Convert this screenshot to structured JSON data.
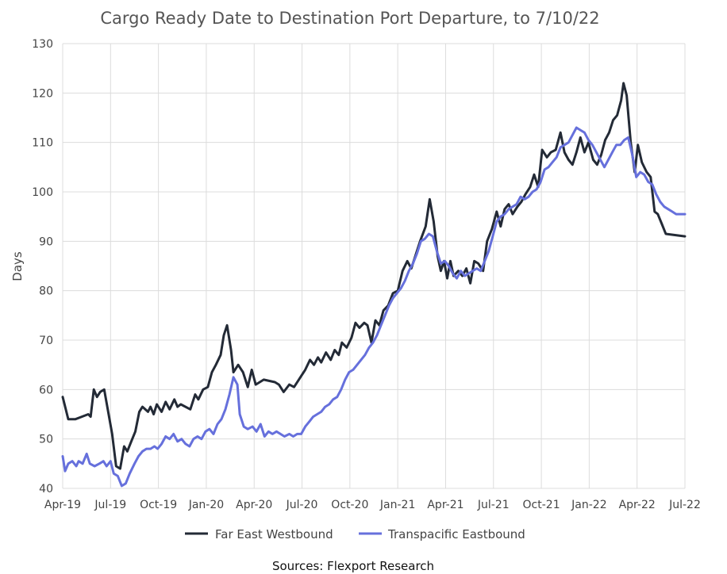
{
  "chart_data": {
    "type": "line",
    "title": "Cargo Ready Date to Destination Port Departure, to 7/10/22",
    "ylabel": "Days",
    "xlabel": "",
    "source": "Sources: Flexport Research",
    "ylim": [
      40,
      130
    ],
    "yticks": [
      40,
      50,
      60,
      70,
      80,
      90,
      100,
      110,
      120,
      130
    ],
    "xlim": [
      0,
      39
    ],
    "xticks": [
      {
        "pos": 0,
        "label": "Apr-19"
      },
      {
        "pos": 3,
        "label": "Jul-19"
      },
      {
        "pos": 6,
        "label": "Oct-19"
      },
      {
        "pos": 9,
        "label": "Jan-20"
      },
      {
        "pos": 12,
        "label": "Apr-20"
      },
      {
        "pos": 15,
        "label": "Jul-20"
      },
      {
        "pos": 18,
        "label": "Oct-20"
      },
      {
        "pos": 21,
        "label": "Jan-21"
      },
      {
        "pos": 24,
        "label": "Apr-21"
      },
      {
        "pos": 27,
        "label": "Jul-21"
      },
      {
        "pos": 30,
        "label": "Oct-21"
      },
      {
        "pos": 33,
        "label": "Jan-22"
      },
      {
        "pos": 36,
        "label": "Apr-22"
      },
      {
        "pos": 39,
        "label": "Jul-22"
      }
    ],
    "grid": true,
    "legend_position": "bottom",
    "series": [
      {
        "name": "Far East Westbound",
        "color": "#232a36",
        "points": [
          [
            0,
            58.5
          ],
          [
            0.35,
            54
          ],
          [
            0.8,
            54
          ],
          [
            1.2,
            54.5
          ],
          [
            1.6,
            55
          ],
          [
            1.75,
            54.5
          ],
          [
            1.95,
            60
          ],
          [
            2.15,
            58.5
          ],
          [
            2.35,
            59.5
          ],
          [
            2.6,
            60
          ],
          [
            3.1,
            51
          ],
          [
            3.35,
            44.5
          ],
          [
            3.6,
            44
          ],
          [
            3.85,
            48.5
          ],
          [
            4.05,
            47.5
          ],
          [
            4.3,
            49.5
          ],
          [
            4.55,
            51.5
          ],
          [
            4.8,
            55.5
          ],
          [
            5.0,
            56.5
          ],
          [
            5.35,
            55.5
          ],
          [
            5.5,
            56.5
          ],
          [
            5.7,
            55
          ],
          [
            5.9,
            57
          ],
          [
            6.2,
            55.5
          ],
          [
            6.45,
            57.5
          ],
          [
            6.7,
            56
          ],
          [
            7.0,
            58
          ],
          [
            7.2,
            56.5
          ],
          [
            7.4,
            57
          ],
          [
            8.0,
            56
          ],
          [
            8.3,
            59
          ],
          [
            8.5,
            58
          ],
          [
            8.8,
            60
          ],
          [
            9.1,
            60.5
          ],
          [
            9.35,
            63.5
          ],
          [
            9.6,
            65
          ],
          [
            9.9,
            67
          ],
          [
            10.1,
            71
          ],
          [
            10.3,
            73
          ],
          [
            10.55,
            68
          ],
          [
            10.7,
            63.5
          ],
          [
            11.0,
            65
          ],
          [
            11.3,
            63.5
          ],
          [
            11.6,
            60.5
          ],
          [
            11.85,
            64
          ],
          [
            12.1,
            61
          ],
          [
            12.6,
            62
          ],
          [
            13.3,
            61.5
          ],
          [
            13.55,
            61
          ],
          [
            13.85,
            59.5
          ],
          [
            14.2,
            61
          ],
          [
            14.5,
            60.5
          ],
          [
            14.8,
            62
          ],
          [
            15.2,
            64
          ],
          [
            15.5,
            66
          ],
          [
            15.75,
            65
          ],
          [
            16.0,
            66.5
          ],
          [
            16.2,
            65.5
          ],
          [
            16.5,
            67.5
          ],
          [
            16.8,
            66
          ],
          [
            17.05,
            68
          ],
          [
            17.3,
            67
          ],
          [
            17.5,
            69.5
          ],
          [
            17.8,
            68.5
          ],
          [
            18.1,
            70.5
          ],
          [
            18.35,
            73.5
          ],
          [
            18.6,
            72.5
          ],
          [
            18.9,
            73.5
          ],
          [
            19.1,
            73
          ],
          [
            19.35,
            69.5
          ],
          [
            19.6,
            74
          ],
          [
            19.85,
            73
          ],
          [
            20.1,
            76
          ],
          [
            20.4,
            77
          ],
          [
            20.7,
            79.5
          ],
          [
            21.0,
            80
          ],
          [
            21.3,
            84
          ],
          [
            21.6,
            86
          ],
          [
            21.85,
            84.5
          ],
          [
            22.1,
            87
          ],
          [
            22.4,
            90
          ],
          [
            22.75,
            93
          ],
          [
            23.0,
            98.5
          ],
          [
            23.25,
            94
          ],
          [
            23.5,
            87
          ],
          [
            23.7,
            84
          ],
          [
            23.9,
            86
          ],
          [
            24.1,
            82.5
          ],
          [
            24.3,
            86
          ],
          [
            24.5,
            83
          ],
          [
            24.8,
            84
          ],
          [
            25.05,
            83
          ],
          [
            25.3,
            84.5
          ],
          [
            25.55,
            81.5
          ],
          [
            25.8,
            86
          ],
          [
            26.05,
            85.5
          ],
          [
            26.35,
            84
          ],
          [
            26.6,
            90
          ],
          [
            26.9,
            92.5
          ],
          [
            27.2,
            96
          ],
          [
            27.45,
            93
          ],
          [
            27.7,
            96.5
          ],
          [
            27.95,
            97.5
          ],
          [
            28.2,
            95.5
          ],
          [
            28.5,
            97
          ],
          [
            28.75,
            98
          ],
          [
            29.0,
            99.5
          ],
          [
            29.3,
            101
          ],
          [
            29.55,
            103.5
          ],
          [
            29.8,
            101
          ],
          [
            30.05,
            108.5
          ],
          [
            30.35,
            107
          ],
          [
            30.6,
            108
          ],
          [
            30.9,
            108.5
          ],
          [
            31.2,
            112
          ],
          [
            31.45,
            108
          ],
          [
            31.7,
            106.5
          ],
          [
            31.95,
            105.5
          ],
          [
            32.2,
            108
          ],
          [
            32.45,
            111
          ],
          [
            32.7,
            108
          ],
          [
            32.95,
            110
          ],
          [
            33.25,
            106.5
          ],
          [
            33.5,
            105.5
          ],
          [
            33.75,
            107.5
          ],
          [
            34.0,
            110.5
          ],
          [
            34.25,
            112
          ],
          [
            34.5,
            114.5
          ],
          [
            34.75,
            115.5
          ],
          [
            35.0,
            118.5
          ],
          [
            35.15,
            122
          ],
          [
            35.35,
            119.5
          ],
          [
            35.6,
            110
          ],
          [
            35.85,
            104
          ],
          [
            36.05,
            109.5
          ],
          [
            36.3,
            106
          ],
          [
            36.6,
            104
          ],
          [
            36.85,
            103
          ],
          [
            37.1,
            96
          ],
          [
            37.3,
            95.5
          ],
          [
            37.55,
            93.5
          ],
          [
            37.8,
            91.5
          ],
          [
            39.0,
            91
          ]
        ]
      },
      {
        "name": "Transpacific Eastbound",
        "color": "#6670dc",
        "points": [
          [
            0,
            46.5
          ],
          [
            0.15,
            43.5
          ],
          [
            0.35,
            45
          ],
          [
            0.6,
            45.5
          ],
          [
            0.85,
            44.5
          ],
          [
            1.0,
            45.5
          ],
          [
            1.25,
            45
          ],
          [
            1.5,
            47
          ],
          [
            1.7,
            45
          ],
          [
            2.0,
            44.5
          ],
          [
            2.3,
            45
          ],
          [
            2.55,
            45.5
          ],
          [
            2.75,
            44.5
          ],
          [
            3.0,
            45.5
          ],
          [
            3.2,
            43
          ],
          [
            3.45,
            42.5
          ],
          [
            3.7,
            40.5
          ],
          [
            3.95,
            41
          ],
          [
            4.2,
            43
          ],
          [
            4.5,
            45
          ],
          [
            4.75,
            46.5
          ],
          [
            5.0,
            47.5
          ],
          [
            5.25,
            48
          ],
          [
            5.5,
            48
          ],
          [
            5.75,
            48.5
          ],
          [
            5.95,
            48
          ],
          [
            6.2,
            49
          ],
          [
            6.45,
            50.5
          ],
          [
            6.7,
            50
          ],
          [
            6.95,
            51
          ],
          [
            7.2,
            49.5
          ],
          [
            7.45,
            50
          ],
          [
            7.7,
            49
          ],
          [
            7.95,
            48.5
          ],
          [
            8.2,
            50
          ],
          [
            8.45,
            50.5
          ],
          [
            8.7,
            50
          ],
          [
            8.95,
            51.5
          ],
          [
            9.2,
            52
          ],
          [
            9.45,
            51
          ],
          [
            9.7,
            53
          ],
          [
            9.95,
            54
          ],
          [
            10.2,
            56
          ],
          [
            10.45,
            59
          ],
          [
            10.7,
            62.5
          ],
          [
            10.95,
            61
          ],
          [
            11.1,
            55
          ],
          [
            11.35,
            52.5
          ],
          [
            11.6,
            52
          ],
          [
            11.9,
            52.5
          ],
          [
            12.15,
            51.5
          ],
          [
            12.4,
            53
          ],
          [
            12.65,
            50.5
          ],
          [
            12.9,
            51.5
          ],
          [
            13.15,
            51
          ],
          [
            13.4,
            51.5
          ],
          [
            13.65,
            51
          ],
          [
            13.9,
            50.5
          ],
          [
            14.2,
            51
          ],
          [
            14.45,
            50.5
          ],
          [
            14.7,
            51
          ],
          [
            14.95,
            51
          ],
          [
            15.2,
            52.5
          ],
          [
            15.45,
            53.5
          ],
          [
            15.7,
            54.5
          ],
          [
            15.95,
            55
          ],
          [
            16.2,
            55.5
          ],
          [
            16.45,
            56.5
          ],
          [
            16.7,
            57
          ],
          [
            16.95,
            58
          ],
          [
            17.2,
            58.5
          ],
          [
            17.45,
            60
          ],
          [
            17.7,
            62
          ],
          [
            17.95,
            63.5
          ],
          [
            18.2,
            64
          ],
          [
            18.45,
            65
          ],
          [
            18.7,
            66
          ],
          [
            18.95,
            67
          ],
          [
            19.2,
            68.5
          ],
          [
            19.45,
            69.5
          ],
          [
            19.7,
            71
          ],
          [
            19.95,
            73
          ],
          [
            20.2,
            75
          ],
          [
            20.45,
            77
          ],
          [
            20.7,
            78.5
          ],
          [
            20.95,
            79.5
          ],
          [
            21.2,
            80.5
          ],
          [
            21.45,
            82
          ],
          [
            21.7,
            84
          ],
          [
            21.95,
            85.5
          ],
          [
            22.2,
            87.5
          ],
          [
            22.45,
            90
          ],
          [
            22.7,
            90.5
          ],
          [
            22.95,
            91.5
          ],
          [
            23.2,
            91
          ],
          [
            23.45,
            88
          ],
          [
            23.7,
            85.5
          ],
          [
            23.95,
            86
          ],
          [
            24.2,
            85
          ],
          [
            24.45,
            83.5
          ],
          [
            24.7,
            82.5
          ],
          [
            24.95,
            84
          ],
          [
            25.2,
            83
          ],
          [
            25.45,
            83.5
          ],
          [
            25.7,
            84
          ],
          [
            25.95,
            84.5
          ],
          [
            26.2,
            84
          ],
          [
            26.45,
            86
          ],
          [
            26.7,
            88
          ],
          [
            26.95,
            91
          ],
          [
            27.2,
            94
          ],
          [
            27.45,
            95
          ],
          [
            27.7,
            95.5
          ],
          [
            27.95,
            96.5
          ],
          [
            28.2,
            97
          ],
          [
            28.45,
            97.5
          ],
          [
            28.7,
            99
          ],
          [
            28.95,
            98.5
          ],
          [
            29.2,
            99
          ],
          [
            29.45,
            100
          ],
          [
            29.7,
            100.5
          ],
          [
            29.95,
            102
          ],
          [
            30.2,
            104.5
          ],
          [
            30.45,
            105
          ],
          [
            30.7,
            106
          ],
          [
            30.95,
            107
          ],
          [
            31.2,
            109
          ],
          [
            31.45,
            109.5
          ],
          [
            31.7,
            110
          ],
          [
            31.95,
            111.5
          ],
          [
            32.2,
            113
          ],
          [
            32.45,
            112.5
          ],
          [
            32.7,
            112
          ],
          [
            32.95,
            110.5
          ],
          [
            33.2,
            109.5
          ],
          [
            33.45,
            108
          ],
          [
            33.7,
            106.5
          ],
          [
            33.95,
            105
          ],
          [
            34.2,
            106.5
          ],
          [
            34.45,
            108
          ],
          [
            34.7,
            109.5
          ],
          [
            34.95,
            109.5
          ],
          [
            35.2,
            110.5
          ],
          [
            35.45,
            111
          ],
          [
            35.7,
            107.5
          ],
          [
            35.95,
            103
          ],
          [
            36.2,
            104
          ],
          [
            36.45,
            103.5
          ],
          [
            36.7,
            102
          ],
          [
            36.95,
            101.5
          ],
          [
            37.2,
            99.5
          ],
          [
            37.45,
            98
          ],
          [
            37.7,
            97
          ],
          [
            37.95,
            96.5
          ],
          [
            38.2,
            96
          ],
          [
            38.45,
            95.5
          ],
          [
            39.0,
            95.5
          ]
        ]
      }
    ]
  }
}
